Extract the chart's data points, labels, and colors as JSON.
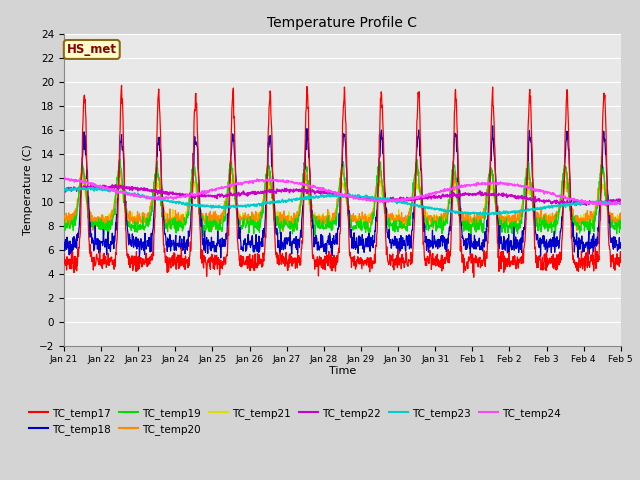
{
  "title": "Temperature Profile C",
  "xlabel": "Time",
  "ylabel": "Temperature (C)",
  "ylim": [
    -2,
    24
  ],
  "yticks": [
    -2,
    0,
    2,
    4,
    6,
    8,
    10,
    12,
    14,
    16,
    18,
    20,
    22,
    24
  ],
  "x_labels": [
    "Jan 21",
    "Jan 22",
    "Jan 23",
    "Jan 24",
    "Jan 25",
    "Jan 26",
    "Jan 27",
    "Jan 28",
    "Jan 29",
    "Jan 30",
    "Jan 31",
    "Feb 1",
    "Feb 2",
    "Feb 3",
    "Feb 4",
    "Feb 5"
  ],
  "annotation_text": "HS_met",
  "annotation_bg": "#ffffcc",
  "annotation_border": "#8B6914",
  "annotation_text_color": "#8B0000",
  "series_colors": {
    "TC_temp17": "#ff0000",
    "TC_temp18": "#0000cc",
    "TC_temp19": "#00dd00",
    "TC_temp20": "#ff8800",
    "TC_temp21": "#dddd00",
    "TC_temp22": "#cc00cc",
    "TC_temp23": "#00cccc",
    "TC_temp24": "#ff44ff"
  },
  "bg_color": "#d4d4d4",
  "plot_bg": "#e8e8e8",
  "n_points": 1500,
  "days": 15
}
